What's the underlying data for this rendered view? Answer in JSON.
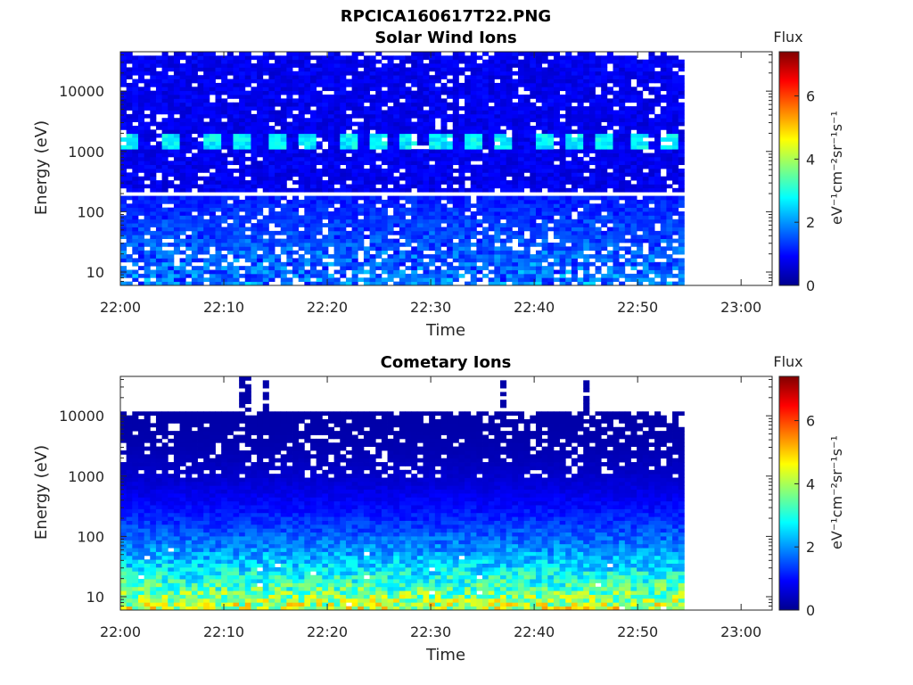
{
  "figure": {
    "title": "RPCICA160617T22.PNG"
  },
  "colorbar": {
    "label": "Flux",
    "unit_label": "eV⁻¹cm⁻²sr⁻¹s⁻¹",
    "ticks": [
      "0",
      "2",
      "4",
      "6"
    ],
    "range": [
      0,
      7.4
    ],
    "colormap": "jet"
  },
  "chart_data": [
    {
      "type": "heatmap",
      "title": "Solar Wind Ions",
      "xlabel": "Time",
      "ylabel": "Energy (eV)",
      "yscale": "log",
      "ylim": [
        6,
        45000
      ],
      "xlim": [
        "22:00",
        "23:03"
      ],
      "x_ticks": [
        "22:00",
        "22:10",
        "22:20",
        "22:30",
        "22:40",
        "22:50",
        "23:00"
      ],
      "y_ticks": [
        "10",
        "100",
        "1000",
        "10000"
      ],
      "data_extent": {
        "time_end": "22:54:30"
      },
      "value_range": [
        0,
        7.4
      ],
      "features": {
        "background_flux": 0.8,
        "peak_flux": 2.9,
        "beam_energy_eV": 1400,
        "beam_times": [
          "22:01",
          "22:05",
          "22:09",
          "22:12",
          "22:15",
          "22:18",
          "22:22",
          "22:25",
          "22:28",
          "22:31",
          "22:34",
          "22:37",
          "22:41",
          "22:44",
          "22:47",
          "22:50",
          "22:53"
        ],
        "gap_energy_eV": 190
      }
    },
    {
      "type": "heatmap",
      "title": "Cometary Ions",
      "xlabel": "Time",
      "ylabel": "Energy (eV)",
      "yscale": "log",
      "ylim": [
        6,
        45000
      ],
      "xlim": [
        "22:00",
        "23:03"
      ],
      "x_ticks": [
        "22:00",
        "22:10",
        "22:20",
        "22:30",
        "22:40",
        "22:50",
        "23:00"
      ],
      "y_ticks": [
        "10",
        "100",
        "1000",
        "10000"
      ],
      "data_extent": {
        "time_end": "22:54:30",
        "energy_top_eV": 11000
      },
      "value_range": [
        0,
        7.4
      ],
      "features": {
        "low_energy_peak_flux": 4.8,
        "high_energy_flux": 0.3,
        "spike_times": [
          "22:12",
          "22:14",
          "22:37",
          "22:45"
        ]
      }
    }
  ]
}
